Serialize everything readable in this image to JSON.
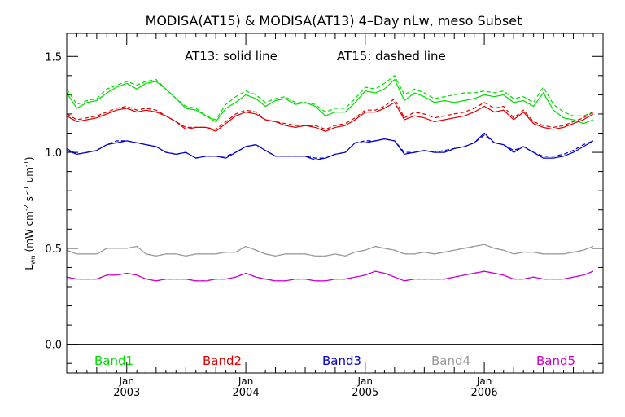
{
  "chart_data": {
    "type": "line",
    "title": "MODISA(AT15) & MODISA(AT13) 4–Day nLw, meso Subset",
    "subtitle_parts": [
      "AT13: solid line",
      "AT15: dashed line"
    ],
    "ylabel": {
      "base": "L",
      "base_sub": "wn",
      "open": " (mW cm",
      "sup1": "-2",
      "mid1": " sr",
      "sup2": "-1",
      "mid2": " um",
      "sup3": "-1",
      "close": ")"
    },
    "xlim": [
      "2002-07-01",
      "2006-12-31"
    ],
    "ylim": [
      -0.15,
      1.62
    ],
    "y_ticks": [
      0.0,
      0.5,
      1.0,
      1.5
    ],
    "y_tick_labels": [
      "0.0",
      "0.5",
      "1.0",
      "1.5"
    ],
    "x_ticks": [
      {
        "date": "2003-01-01",
        "label1": "Jan",
        "label2": "2003"
      },
      {
        "date": "2004-01-01",
        "label1": "Jan",
        "label2": "2004"
      },
      {
        "date": "2005-01-01",
        "label1": "Jan",
        "label2": "2005"
      },
      {
        "date": "2006-01-01",
        "label1": "Jan",
        "label2": "2006"
      }
    ],
    "zero_line": true,
    "grid": false,
    "legend": {
      "placement": "bottom"
    },
    "line_styles": {
      "AT13": "solid",
      "AT15": "dashed"
    },
    "x": [
      "2002-07-01",
      "2002-08-01",
      "2002-09-01",
      "2002-10-01",
      "2002-11-01",
      "2002-12-01",
      "2003-01-01",
      "2003-02-01",
      "2003-03-01",
      "2003-04-01",
      "2003-05-01",
      "2003-06-01",
      "2003-07-01",
      "2003-08-01",
      "2003-09-01",
      "2003-10-01",
      "2003-11-01",
      "2003-12-01",
      "2004-01-01",
      "2004-02-01",
      "2004-03-01",
      "2004-04-01",
      "2004-05-01",
      "2004-06-01",
      "2004-07-01",
      "2004-08-01",
      "2004-09-01",
      "2004-10-01",
      "2004-11-01",
      "2004-12-01",
      "2005-01-01",
      "2005-02-01",
      "2005-03-01",
      "2005-04-01",
      "2005-05-01",
      "2005-06-01",
      "2005-07-01",
      "2005-08-01",
      "2005-09-01",
      "2005-10-01",
      "2005-11-01",
      "2005-12-01",
      "2006-01-01",
      "2006-02-01",
      "2006-03-01",
      "2006-04-01",
      "2006-05-01",
      "2006-06-01",
      "2006-07-01",
      "2006-08-01",
      "2006-09-01",
      "2006-10-01",
      "2006-11-01",
      "2006-12-01"
    ],
    "series": [
      {
        "name": "Band1",
        "color": "#00dd00",
        "AT13": [
          1.31,
          1.23,
          1.26,
          1.27,
          1.31,
          1.34,
          1.36,
          1.33,
          1.36,
          1.37,
          1.33,
          1.28,
          1.23,
          1.22,
          1.19,
          1.16,
          1.23,
          1.26,
          1.3,
          1.28,
          1.24,
          1.27,
          1.28,
          1.25,
          1.26,
          1.24,
          1.19,
          1.21,
          1.21,
          1.26,
          1.32,
          1.31,
          1.33,
          1.38,
          1.27,
          1.31,
          1.29,
          1.26,
          1.27,
          1.26,
          1.27,
          1.28,
          1.3,
          1.29,
          1.3,
          1.26,
          1.27,
          1.24,
          1.31,
          1.22,
          1.18,
          1.17,
          1.15,
          1.17
        ],
        "AT15": [
          1.33,
          1.25,
          1.27,
          1.28,
          1.33,
          1.35,
          1.37,
          1.35,
          1.37,
          1.38,
          1.33,
          1.28,
          1.24,
          1.23,
          1.19,
          1.17,
          1.25,
          1.29,
          1.32,
          1.3,
          1.26,
          1.28,
          1.29,
          1.26,
          1.26,
          1.25,
          1.21,
          1.23,
          1.23,
          1.28,
          1.34,
          1.33,
          1.36,
          1.4,
          1.3,
          1.33,
          1.31,
          1.28,
          1.29,
          1.3,
          1.31,
          1.31,
          1.32,
          1.31,
          1.32,
          1.28,
          1.29,
          1.26,
          1.34,
          1.25,
          1.21,
          1.19,
          1.19,
          1.21
        ]
      },
      {
        "name": "Band2",
        "color": "#dd0000",
        "AT13": [
          1.19,
          1.16,
          1.17,
          1.18,
          1.2,
          1.22,
          1.23,
          1.21,
          1.22,
          1.21,
          1.19,
          1.16,
          1.12,
          1.13,
          1.13,
          1.11,
          1.15,
          1.19,
          1.21,
          1.2,
          1.17,
          1.16,
          1.14,
          1.13,
          1.14,
          1.13,
          1.11,
          1.13,
          1.14,
          1.17,
          1.21,
          1.21,
          1.23,
          1.26,
          1.17,
          1.19,
          1.18,
          1.16,
          1.17,
          1.18,
          1.19,
          1.21,
          1.24,
          1.21,
          1.22,
          1.17,
          1.21,
          1.15,
          1.13,
          1.12,
          1.13,
          1.15,
          1.17,
          1.2
        ],
        "AT15": [
          1.2,
          1.17,
          1.18,
          1.19,
          1.21,
          1.23,
          1.24,
          1.22,
          1.23,
          1.22,
          1.19,
          1.16,
          1.13,
          1.13,
          1.13,
          1.12,
          1.16,
          1.2,
          1.22,
          1.21,
          1.17,
          1.16,
          1.15,
          1.14,
          1.14,
          1.14,
          1.12,
          1.14,
          1.15,
          1.18,
          1.22,
          1.22,
          1.24,
          1.28,
          1.18,
          1.21,
          1.2,
          1.18,
          1.19,
          1.2,
          1.21,
          1.23,
          1.26,
          1.23,
          1.24,
          1.18,
          1.22,
          1.16,
          1.14,
          1.13,
          1.14,
          1.16,
          1.18,
          1.21
        ]
      },
      {
        "name": "Band3",
        "color": "#0000cc",
        "AT13": [
          1.01,
          0.99,
          1.0,
          1.01,
          1.04,
          1.05,
          1.06,
          1.05,
          1.04,
          1.03,
          1.0,
          0.99,
          1.0,
          0.97,
          0.98,
          0.98,
          0.97,
          1.0,
          1.03,
          1.04,
          1.01,
          0.98,
          0.98,
          0.98,
          0.98,
          0.96,
          0.97,
          0.99,
          1.0,
          1.05,
          1.05,
          1.06,
          1.07,
          1.06,
          0.99,
          1.0,
          1.01,
          1.0,
          1.0,
          1.02,
          1.03,
          1.05,
          1.1,
          1.05,
          1.04,
          1.0,
          1.03,
          1.0,
          0.97,
          0.97,
          0.98,
          1.0,
          1.03,
          1.06
        ],
        "AT15": [
          1.02,
          0.99,
          1.0,
          1.01,
          1.04,
          1.06,
          1.06,
          1.05,
          1.04,
          1.03,
          1.0,
          0.99,
          1.0,
          0.97,
          0.98,
          0.98,
          0.98,
          1.0,
          1.03,
          1.04,
          1.01,
          0.98,
          0.98,
          0.98,
          0.98,
          0.97,
          0.97,
          0.99,
          1.0,
          1.05,
          1.06,
          1.06,
          1.07,
          1.06,
          1.0,
          1.0,
          1.01,
          1.0,
          1.01,
          1.02,
          1.03,
          1.05,
          1.09,
          1.05,
          1.04,
          1.01,
          1.03,
          1.0,
          0.98,
          0.98,
          0.99,
          1.01,
          1.04,
          1.06
        ]
      },
      {
        "name": "Band4",
        "color": "#999999",
        "AT13": [
          0.49,
          0.47,
          0.47,
          0.47,
          0.5,
          0.5,
          0.5,
          0.51,
          0.47,
          0.46,
          0.47,
          0.47,
          0.46,
          0.47,
          0.47,
          0.47,
          0.48,
          0.48,
          0.51,
          0.49,
          0.47,
          0.46,
          0.47,
          0.47,
          0.47,
          0.46,
          0.46,
          0.47,
          0.46,
          0.48,
          0.49,
          0.51,
          0.5,
          0.49,
          0.47,
          0.47,
          0.48,
          0.47,
          0.48,
          0.49,
          0.5,
          0.51,
          0.52,
          0.5,
          0.49,
          0.47,
          0.48,
          0.48,
          0.47,
          0.47,
          0.47,
          0.48,
          0.49,
          0.51
        ],
        "AT15": [
          0.49,
          0.47,
          0.47,
          0.47,
          0.5,
          0.5,
          0.5,
          0.51,
          0.47,
          0.46,
          0.47,
          0.47,
          0.46,
          0.47,
          0.47,
          0.47,
          0.48,
          0.48,
          0.51,
          0.49,
          0.47,
          0.46,
          0.47,
          0.47,
          0.47,
          0.46,
          0.46,
          0.47,
          0.46,
          0.48,
          0.49,
          0.51,
          0.5,
          0.49,
          0.47,
          0.47,
          0.48,
          0.47,
          0.48,
          0.49,
          0.5,
          0.51,
          0.52,
          0.5,
          0.49,
          0.47,
          0.48,
          0.48,
          0.47,
          0.47,
          0.47,
          0.48,
          0.49,
          0.51
        ]
      },
      {
        "name": "Band5",
        "color": "#cc00cc",
        "AT13": [
          0.35,
          0.34,
          0.34,
          0.34,
          0.36,
          0.36,
          0.37,
          0.36,
          0.34,
          0.33,
          0.34,
          0.34,
          0.34,
          0.33,
          0.33,
          0.34,
          0.34,
          0.35,
          0.37,
          0.35,
          0.34,
          0.33,
          0.33,
          0.34,
          0.34,
          0.33,
          0.33,
          0.34,
          0.34,
          0.35,
          0.36,
          0.38,
          0.37,
          0.35,
          0.33,
          0.34,
          0.34,
          0.34,
          0.34,
          0.35,
          0.36,
          0.37,
          0.38,
          0.37,
          0.36,
          0.34,
          0.34,
          0.35,
          0.34,
          0.34,
          0.34,
          0.35,
          0.36,
          0.38
        ],
        "AT15": [
          0.35,
          0.34,
          0.34,
          0.34,
          0.36,
          0.36,
          0.37,
          0.36,
          0.34,
          0.33,
          0.34,
          0.34,
          0.34,
          0.33,
          0.33,
          0.34,
          0.34,
          0.35,
          0.37,
          0.35,
          0.34,
          0.33,
          0.33,
          0.34,
          0.34,
          0.33,
          0.33,
          0.34,
          0.34,
          0.35,
          0.36,
          0.38,
          0.37,
          0.35,
          0.33,
          0.34,
          0.34,
          0.34,
          0.34,
          0.35,
          0.36,
          0.37,
          0.38,
          0.37,
          0.36,
          0.34,
          0.34,
          0.35,
          0.34,
          0.34,
          0.34,
          0.35,
          0.36,
          0.38
        ]
      }
    ]
  }
}
